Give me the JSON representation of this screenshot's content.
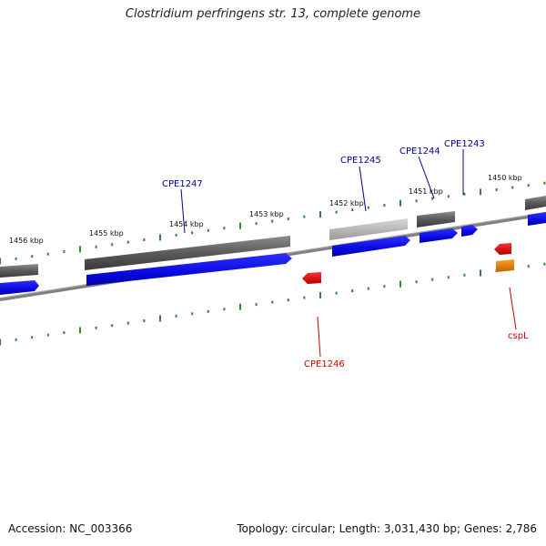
{
  "title": "Clostridium perfringens str. 13, complete genome",
  "footer": {
    "accession": "Accession: NC_003366",
    "summary": "Topology: circular; Length: 3,031,430 bp; Genes: 2,786"
  },
  "colors": {
    "forward_gene": "#1010e8",
    "reverse_gene": "#e81010",
    "cds_gray": "#666666",
    "cds_light": "#bcbcbc",
    "orange": "#f08a00",
    "tick_green": "#2a8a2a",
    "backbone": "#808080",
    "forward_label": "#00008b",
    "reverse_label": "#cc0000"
  },
  "kbp_labels": [
    {
      "id": "1456",
      "text": "1456 kbp"
    },
    {
      "id": "1455",
      "text": "1455 kbp"
    },
    {
      "id": "1454",
      "text": "1454 kbp"
    },
    {
      "id": "1453",
      "text": "1453 kbp"
    },
    {
      "id": "1452",
      "text": "1452 kbp"
    },
    {
      "id": "1451",
      "text": "1451 kbp"
    },
    {
      "id": "1450",
      "text": "1450 kbp"
    }
  ],
  "gene_labels": [
    {
      "id": "CPE1247",
      "text": "CPE1247",
      "strand": "forward"
    },
    {
      "id": "CPE1245",
      "text": "CPE1245",
      "strand": "forward"
    },
    {
      "id": "CPE1244",
      "text": "CPE1244",
      "strand": "forward"
    },
    {
      "id": "CPE1243",
      "text": "CPE1243",
      "strand": "forward"
    },
    {
      "id": "CPE1246",
      "text": "CPE1246",
      "strand": "reverse"
    },
    {
      "id": "cspL",
      "text": "cspL",
      "strand": "reverse"
    }
  ]
}
